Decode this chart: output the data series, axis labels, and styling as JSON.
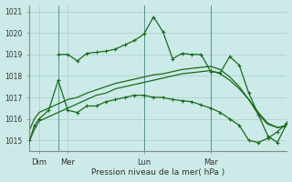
{
  "background_color": "#cceae8",
  "grid_color": "#aacccc",
  "line_color": "#1a6b1a",
  "xlabel": "Pression niveau de la mer( hPa )",
  "ylim": [
    1014.5,
    1021.3
  ],
  "xlim": [
    0,
    27
  ],
  "xtick_positions": [
    1,
    4,
    12,
    19
  ],
  "xtick_labels": [
    "Dim",
    "Mer",
    "Lun",
    "Mar"
  ],
  "ytick_positions": [
    1015,
    1016,
    1017,
    1018,
    1019,
    1020,
    1021
  ],
  "vlines": [
    3,
    12,
    19
  ],
  "series1_x": [
    0,
    0.5,
    1,
    2,
    3,
    4,
    5,
    6,
    7,
    8,
    9,
    10,
    11,
    12,
    13,
    14,
    15,
    16,
    17,
    18,
    19,
    20,
    21,
    22,
    23,
    24,
    25,
    26,
    27
  ],
  "series1_y": [
    1015.0,
    1015.5,
    1015.9,
    1016.1,
    1016.3,
    1016.5,
    1016.7,
    1016.9,
    1017.1,
    1017.2,
    1017.4,
    1017.5,
    1017.6,
    1017.7,
    1017.8,
    1017.9,
    1018.0,
    1018.1,
    1018.15,
    1018.2,
    1018.25,
    1018.1,
    1017.8,
    1017.4,
    1016.9,
    1016.3,
    1015.8,
    1015.6,
    1015.7
  ],
  "series2_x": [
    0,
    0.5,
    1,
    2,
    3,
    4,
    5,
    6,
    7,
    8,
    9,
    10,
    11,
    12,
    13,
    14,
    15,
    16,
    17,
    18,
    19,
    20,
    21,
    22,
    23,
    24,
    25,
    26,
    27
  ],
  "series2_y": [
    1015.5,
    1016.0,
    1016.3,
    1016.5,
    1016.7,
    1016.9,
    1017.0,
    1017.2,
    1017.35,
    1017.5,
    1017.65,
    1017.75,
    1017.85,
    1017.95,
    1018.05,
    1018.1,
    1018.2,
    1018.3,
    1018.35,
    1018.4,
    1018.45,
    1018.3,
    1017.95,
    1017.5,
    1016.9,
    1016.2,
    1015.75,
    1015.6,
    1015.65
  ],
  "series3_x": [
    3,
    4,
    5,
    6,
    7,
    8,
    9,
    10,
    11,
    12,
    13,
    14,
    15,
    16,
    17,
    18,
    19,
    20,
    21,
    22,
    23,
    24,
    25,
    26,
    27
  ],
  "series3_y": [
    1019.0,
    1019.0,
    1018.7,
    1019.05,
    1019.1,
    1019.15,
    1019.25,
    1019.45,
    1019.65,
    1019.95,
    1020.75,
    1020.05,
    1018.8,
    1019.05,
    1019.0,
    1019.0,
    1018.2,
    1018.15,
    1018.9,
    1018.5,
    1017.2,
    1016.2,
    1015.2,
    1014.9,
    1015.8
  ],
  "series4_x": [
    0,
    0.5,
    1,
    2,
    3,
    4,
    5,
    6,
    7,
    8,
    9,
    10,
    11,
    12,
    13,
    14,
    15,
    16,
    17,
    18,
    19,
    20,
    21,
    22,
    23,
    24,
    25,
    26,
    27
  ],
  "series4_y": [
    1015.0,
    1015.7,
    1016.0,
    1016.4,
    1017.8,
    1016.4,
    1016.3,
    1016.6,
    1016.6,
    1016.8,
    1016.9,
    1017.0,
    1017.1,
    1017.1,
    1017.0,
    1017.0,
    1016.9,
    1016.85,
    1016.8,
    1016.65,
    1016.5,
    1016.3,
    1016.0,
    1015.7,
    1015.0,
    1014.9,
    1015.1,
    1015.4,
    1015.8
  ]
}
